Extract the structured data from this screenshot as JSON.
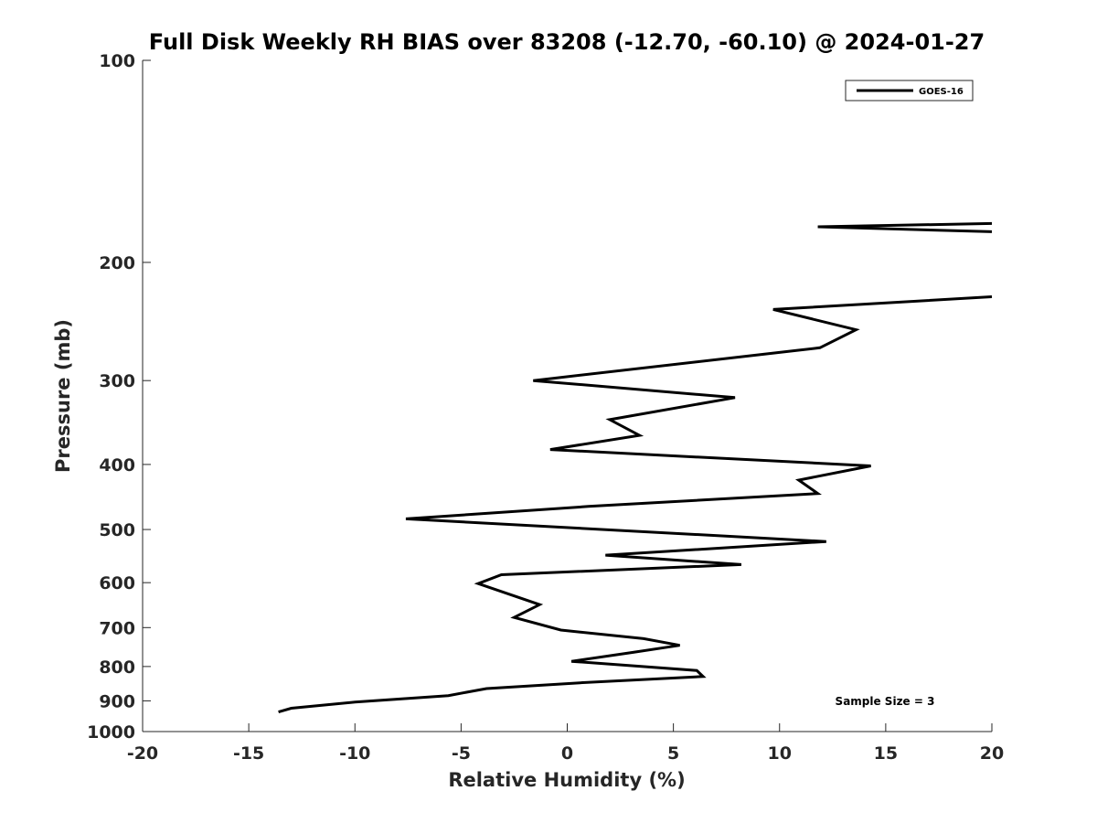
{
  "chart_data": {
    "type": "line",
    "title": "Full Disk Weekly RH BIAS over 83208 (-12.70, -60.10) @ 2024-01-27",
    "xlabel": "Relative Humidity (%)",
    "ylabel": "Pressure (mb)",
    "xlim": [
      -20,
      20
    ],
    "ylim": [
      1000,
      100
    ],
    "yscale": "log",
    "y_direction": "reversed",
    "grid": false,
    "legend_position": "top-right",
    "x_ticks": [
      "-20",
      "-15",
      "-10",
      "-5",
      "0",
      "5",
      "10",
      "15",
      "20"
    ],
    "x_tick_values": [
      -20,
      -15,
      -10,
      -5,
      0,
      5,
      10,
      15,
      20
    ],
    "y_ticks": [
      "100",
      "200",
      "300",
      "400",
      "500",
      "600",
      "700",
      "800",
      "900",
      "1000"
    ],
    "y_tick_values": [
      100,
      200,
      300,
      400,
      500,
      600,
      700,
      800,
      900,
      1000
    ],
    "series": [
      {
        "name": "GOES-16",
        "color": "#000000",
        "segments": [
          [
            {
              "x": 20.0,
              "y": 175
            },
            {
              "x": 11.8,
              "y": 177
            },
            {
              "x": 20.0,
              "y": 180
            }
          ],
          [
            {
              "x": 20.0,
              "y": 225
            },
            {
              "x": 9.7,
              "y": 235
            },
            {
              "x": 13.6,
              "y": 252
            },
            {
              "x": 11.9,
              "y": 268
            },
            {
              "x": -1.6,
              "y": 300
            },
            {
              "x": 7.9,
              "y": 318
            },
            {
              "x": 2.0,
              "y": 343
            },
            {
              "x": 3.4,
              "y": 362
            },
            {
              "x": -0.8,
              "y": 380
            },
            {
              "x": 14.3,
              "y": 402
            },
            {
              "x": 10.9,
              "y": 422
            },
            {
              "x": 11.8,
              "y": 442
            },
            {
              "x": 1.0,
              "y": 462
            },
            {
              "x": -7.6,
              "y": 482
            },
            {
              "x": 12.2,
              "y": 521
            },
            {
              "x": 1.8,
              "y": 546
            },
            {
              "x": 8.2,
              "y": 564
            },
            {
              "x": -3.1,
              "y": 584
            },
            {
              "x": -4.2,
              "y": 602
            },
            {
              "x": -1.3,
              "y": 647
            },
            {
              "x": -2.5,
              "y": 676
            },
            {
              "x": -0.3,
              "y": 706
            },
            {
              "x": 3.6,
              "y": 727
            },
            {
              "x": 5.3,
              "y": 744
            },
            {
              "x": 3.1,
              "y": 762
            },
            {
              "x": 0.2,
              "y": 786
            },
            {
              "x": 6.1,
              "y": 811
            },
            {
              "x": 6.4,
              "y": 828
            },
            {
              "x": 0.6,
              "y": 846
            },
            {
              "x": -3.8,
              "y": 863
            },
            {
              "x": -5.6,
              "y": 884
            },
            {
              "x": -10.0,
              "y": 904
            },
            {
              "x": -13.0,
              "y": 923
            },
            {
              "x": -13.6,
              "y": 935
            }
          ]
        ]
      }
    ],
    "annotations": [
      "Sample Size = 3"
    ]
  }
}
